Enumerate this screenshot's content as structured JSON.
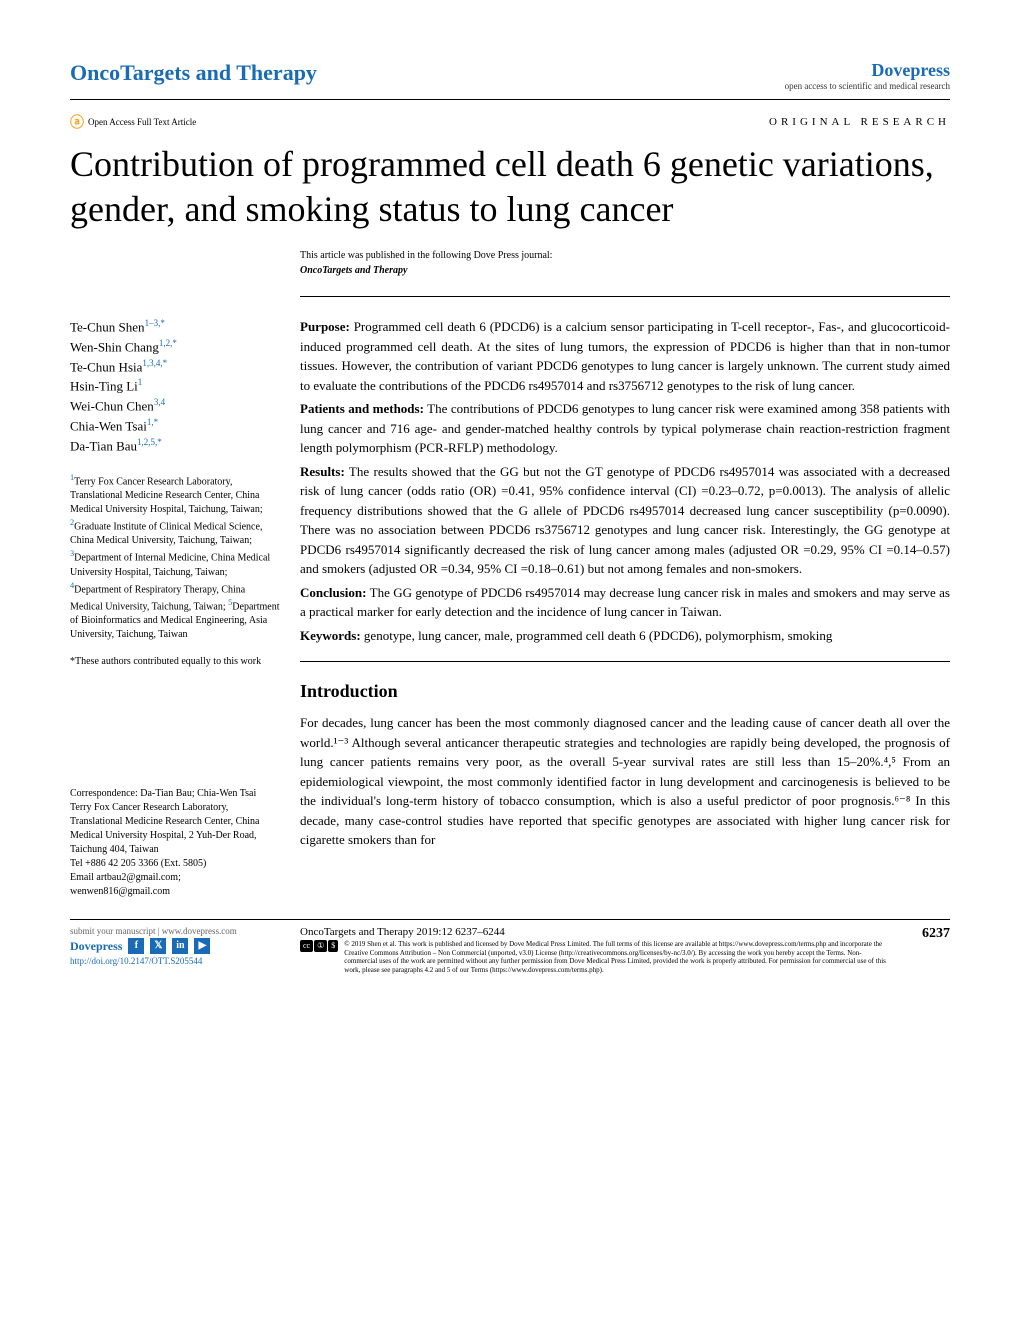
{
  "header": {
    "journal_name": "OncoTargets and Therapy",
    "publisher_name": "Dovepress",
    "publisher_tagline": "open access to scientific and medical research"
  },
  "article_meta": {
    "open_access_text": "Open Access Full Text Article",
    "article_type": "ORIGINAL RESEARCH"
  },
  "title": "Contribution of programmed cell death 6 genetic variations, gender, and smoking status to lung cancer",
  "publication_note": "This article was published in the following Dove Press journal:",
  "publication_journal": "OncoTargets and Therapy",
  "authors": [
    {
      "name": "Te-Chun Shen",
      "sup": "1–3,*"
    },
    {
      "name": "Wen-Shin Chang",
      "sup": "1,2,*"
    },
    {
      "name": "Te-Chun Hsia",
      "sup": "1,3,4,*"
    },
    {
      "name": "Hsin-Ting Li",
      "sup": "1"
    },
    {
      "name": "Wei-Chun Chen",
      "sup": "3,4"
    },
    {
      "name": "Chia-Wen Tsai",
      "sup": "1,*"
    },
    {
      "name": "Da-Tian Bau",
      "sup": "1,2,5,*"
    }
  ],
  "affiliations": "¹Terry Fox Cancer Research Laboratory, Translational Medicine Research Center, China Medical University Hospital, Taichung, Taiwan; ²Graduate Institute of Clinical Medical Science, China Medical University, Taichung, Taiwan; ³Department of Internal Medicine, China Medical University Hospital, Taichung, Taiwan; ⁴Department of Respiratory Therapy, China Medical University, Taichung, Taiwan; ⁵Department of Bioinformatics and Medical Engineering, Asia University, Taichung, Taiwan",
  "equal_contrib": "*These authors contributed equally to this work",
  "correspondence": {
    "label": "Correspondence: Da-Tian Bau; Chia-Wen Tsai",
    "address": "Terry Fox Cancer Research Laboratory, Translational Medicine Research Center, China Medical University Hospital, 2 Yuh-Der Road, Taichung 404, Taiwan",
    "tel": "Tel +886 42 205 3366 (Ext. 5805)",
    "email": "Email artbau2@gmail.com; wenwen816@gmail.com"
  },
  "abstract": {
    "purpose": {
      "label": "Purpose:",
      "text": " Programmed cell death 6 (PDCD6) is a calcium sensor participating in T-cell receptor-, Fas-, and glucocorticoid-induced programmed cell death. At the sites of lung tumors, the expression of PDCD6 is higher than that in non-tumor tissues. However, the contribution of variant PDCD6 genotypes to lung cancer is largely unknown. The current study aimed to evaluate the contributions of the PDCD6 rs4957014 and rs3756712 genotypes to the risk of lung cancer."
    },
    "methods": {
      "label": "Patients and methods:",
      "text": " The contributions of PDCD6 genotypes to lung cancer risk were examined among 358 patients with lung cancer and 716 age- and gender-matched healthy controls by typical polymerase chain reaction-restriction fragment length polymorphism (PCR-RFLP) methodology."
    },
    "results": {
      "label": "Results:",
      "text": " The results showed that the GG but not the GT genotype of PDCD6 rs4957014 was associated with a decreased risk of lung cancer (odds ratio (OR) =0.41, 95% confidence interval (CI) =0.23–0.72, p=0.0013). The analysis of allelic frequency distributions showed that the G allele of PDCD6 rs4957014 decreased lung cancer susceptibility (p=0.0090). There was no association between PDCD6 rs3756712 genotypes and lung cancer risk. Interestingly, the GG genotype at PDCD6 rs4957014 significantly decreased the risk of lung cancer among males (adjusted OR =0.29, 95% CI =0.14–0.57) and smokers (adjusted OR =0.34, 95% CI =0.18–0.61) but not among females and non-smokers."
    },
    "conclusion": {
      "label": "Conclusion:",
      "text": " The GG genotype of PDCD6 rs4957014 may decrease lung cancer risk in males and smokers and may serve as a practical marker for early detection and the incidence of lung cancer in Taiwan."
    },
    "keywords": {
      "label": "Keywords:",
      "text": " genotype, lung cancer, male, programmed cell death 6 (PDCD6), polymorphism, smoking"
    }
  },
  "introduction": {
    "heading": "Introduction",
    "text": "For decades, lung cancer has been the most commonly diagnosed cancer and the leading cause of cancer death all over the world.¹⁻³ Although several anticancer therapeutic strategies and technologies are rapidly being developed, the prognosis of lung cancer patients remains very poor, as the overall 5-year survival rates are still less than 15–20%.⁴,⁵ From an epidemiological viewpoint, the most commonly identified factor in lung development and carcinogenesis is believed to be the individual's long-term history of tobacco consumption, which is also a useful predictor of poor prognosis.⁶⁻⁸ In this decade, many case-control studies have reported that specific genotypes are associated with higher lung cancer risk for cigarette smokers than for"
  },
  "footer": {
    "submit_text": "submit your manuscript | www.dovepress.com",
    "dovepress": "Dovepress",
    "doi": "http://doi.org/10.2147/OTT.S205544",
    "citation": "OncoTargets and Therapy 2019:12 6237–6244",
    "page_num": "6237",
    "license_text": "© 2019 Shen et al. This work is published and licensed by Dove Medical Press Limited. The full terms of this license are available at https://www.dovepress.com/terms.php and incorporate the Creative Commons Attribution – Non Commercial (unported, v3.0) License (http://creativecommons.org/licenses/by-nc/3.0/). By accessing the work you hereby accept the Terms. Non-commercial uses of the work are permitted without any further permission from Dove Medical Press Limited, provided the work is properly attributed. For permission for commercial use of this work, please see paragraphs 4.2 and 5 of our Terms (https://www.dovepress.com/terms.php)."
  }
}
